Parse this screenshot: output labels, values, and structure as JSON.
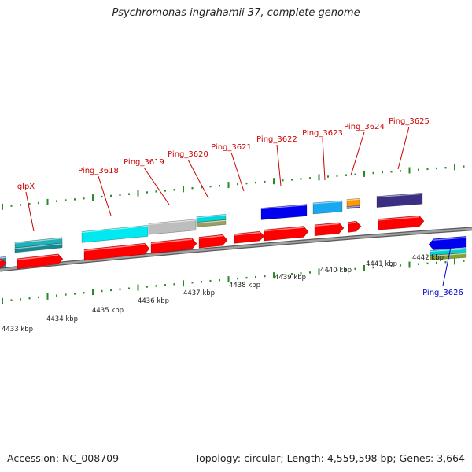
{
  "title": "Psychromonas ingrahamii 37, complete genome",
  "footer": {
    "accession": "Accession: NC_008709",
    "topology": "Topology: circular; Length: 4,559,598 bp; Genes: 3,664"
  },
  "scale": {
    "unit": "kbp",
    "labels": [
      "4433 kbp",
      "4434 kbp",
      "4435 kbp",
      "4436 kbp",
      "4437 kbp",
      "4438 kbp",
      "4439 kbp",
      "4440 kbp",
      "4441 kbp",
      "4442 kbp"
    ]
  },
  "colors": {
    "cds": "#ff0000",
    "label_forward": "#cc0000",
    "label_reverse": "#0000cc",
    "backbone": "#808080",
    "tick": "#2a8a2a"
  },
  "genes": [
    {
      "name": "glpX",
      "strand": "forward"
    },
    {
      "name": "Ping_3618",
      "strand": "forward"
    },
    {
      "name": "Ping_3619",
      "strand": "forward"
    },
    {
      "name": "Ping_3620",
      "strand": "forward"
    },
    {
      "name": "Ping_3621",
      "strand": "forward"
    },
    {
      "name": "Ping_3622",
      "strand": "forward"
    },
    {
      "name": "Ping_3623",
      "strand": "forward"
    },
    {
      "name": "Ping_3624",
      "strand": "forward"
    },
    {
      "name": "Ping_3625",
      "strand": "forward"
    },
    {
      "name": "Ping_3626",
      "strand": "reverse"
    }
  ]
}
